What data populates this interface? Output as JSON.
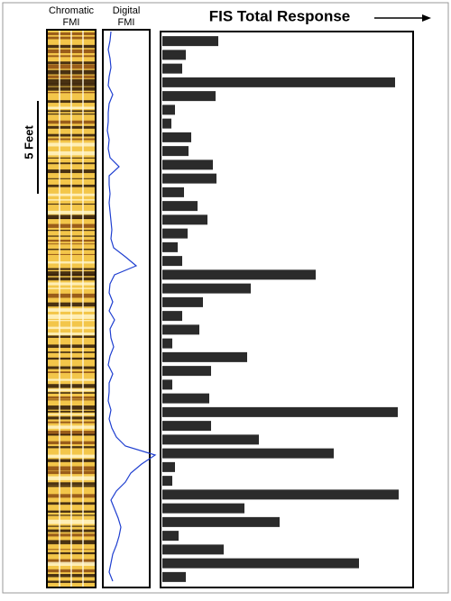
{
  "labels": {
    "chromatic_1": "Chromatic",
    "chromatic_2": "FMI",
    "digital_1": "Digital",
    "digital_2": "FMI",
    "scale": "5 Feet"
  },
  "chart_data": [
    {
      "type": "line",
      "title": "Digital FMI",
      "color": "#1f3fd0",
      "xlim": [
        0,
        49
      ],
      "values": [
        6,
        5,
        3,
        5,
        6,
        4,
        3,
        8,
        4,
        3,
        3,
        2,
        4,
        3,
        5,
        15,
        4,
        4,
        5,
        4,
        5,
        6,
        7,
        6,
        9,
        22,
        34,
        10,
        5,
        4,
        8,
        4,
        10,
        5,
        6,
        9,
        5,
        3,
        8,
        4,
        4,
        3,
        6,
        4,
        7,
        12,
        22,
        55,
        40,
        28,
        22,
        12,
        6,
        10,
        14,
        17,
        15,
        12,
        8,
        6,
        4,
        8
      ]
    },
    {
      "type": "bar",
      "title": "FIS Total Response",
      "color": "#2b2b2b",
      "xlim": [
        0,
        280
      ],
      "values": [
        62,
        26,
        22,
        258,
        59,
        14,
        10,
        32,
        29,
        56,
        60,
        24,
        39,
        50,
        28,
        17,
        22,
        170,
        98,
        45,
        22,
        41,
        11,
        94,
        54,
        11,
        52,
        261,
        54,
        107,
        190,
        14,
        11,
        262,
        91,
        130,
        18,
        68,
        218,
        26
      ]
    }
  ]
}
